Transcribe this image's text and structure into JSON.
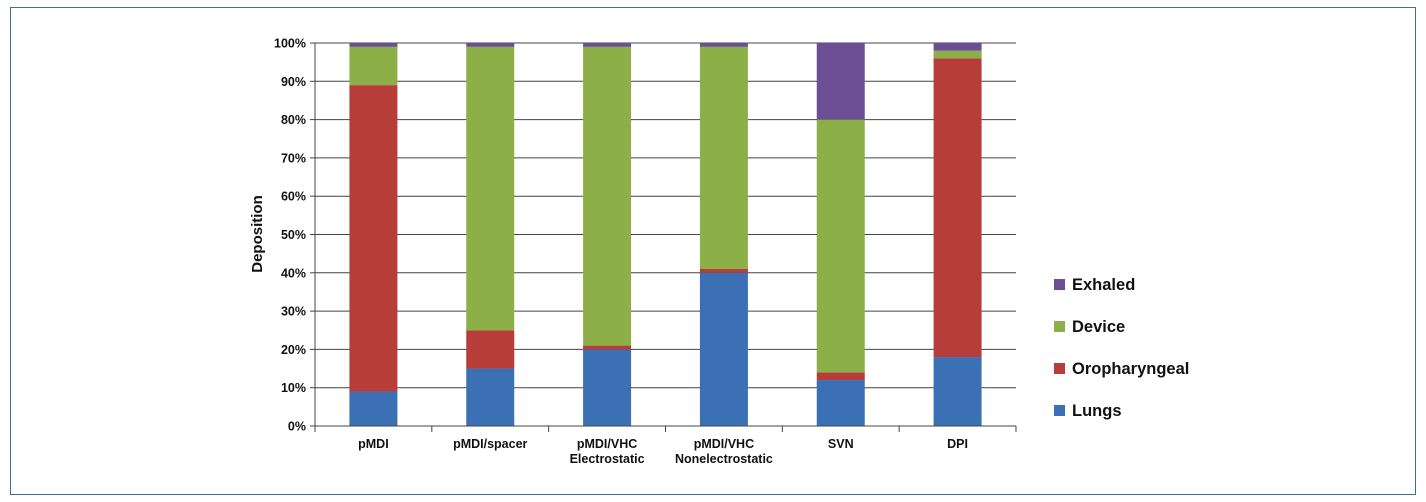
{
  "chart_data": {
    "type": "bar",
    "stacked": true,
    "title": "",
    "xlabel": "",
    "ylabel": "Deposition",
    "ylim": [
      0,
      100
    ],
    "y_ticks": [
      "0%",
      "10%",
      "20%",
      "30%",
      "40%",
      "50%",
      "60%",
      "70%",
      "80%",
      "90%",
      "100%"
    ],
    "grid": true,
    "legend_position": "right",
    "categories": [
      [
        "pMDI"
      ],
      [
        "pMDI/spacer"
      ],
      [
        "pMDI/VHC",
        "Electrostatic"
      ],
      [
        "pMDI/VHC",
        "Nonelectrostatic"
      ],
      [
        "SVN"
      ],
      [
        "DPI"
      ]
    ],
    "series": [
      {
        "name": "Lungs",
        "color": "#3b70b4",
        "values": [
          9,
          15,
          20,
          40,
          12,
          18
        ]
      },
      {
        "name": "Oropharyngeal",
        "color": "#b73d3b",
        "values": [
          80,
          10,
          1,
          1,
          2,
          78
        ]
      },
      {
        "name": "Device",
        "color": "#8caf48",
        "values": [
          10,
          74,
          78,
          58,
          66,
          2
        ]
      },
      {
        "name": "Exhaled",
        "color": "#6b4e94",
        "values": [
          1,
          1,
          1,
          1,
          20,
          2
        ]
      }
    ],
    "legend_order": [
      "Exhaled",
      "Device",
      "Oropharyngeal",
      "Lungs"
    ]
  }
}
